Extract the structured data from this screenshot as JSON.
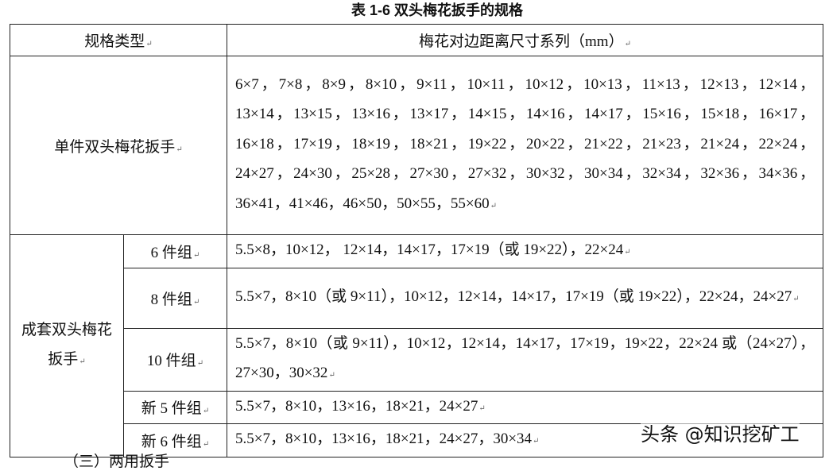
{
  "title": "表 1-6  双头梅花扳手的规格",
  "table": {
    "headers": [
      "规格类型",
      "梅花对边距离尺寸系列（mm）"
    ],
    "single": {
      "type": "单件双头梅花扳手",
      "sizes": "6×7，7×8，8×9，8×10，9×11，10×11，10×12，10×13，11×13，12×13，12×14，13×14，13×15，13×16，13×17，14×15，14×16，14×17，15×16，15×18，16×17，16×18，17×19，18×19，18×21，19×22，20×22，21×22，21×23，21×24，22×24，24×27，24×30，25×28，27×30，27×32，30×32，30×34，32×34，32×36，34×36，36×41，41×46，46×50，50×55，55×60"
    },
    "set_type": "成套双头梅花扳手",
    "sets": [
      {
        "group": "6 件组",
        "sizes": "5.5×8，10×12， 12×14，14×17，17×19（或 19×22），22×24"
      },
      {
        "group": "8 件组",
        "sizes": "5.5×7，8×10（或 9×11），10×12，12×14，14×17，17×19（或 19×22），22×24，24×27"
      },
      {
        "group": "10 件组",
        "sizes": "5.5×7，8×10（或 9×11），10×12，12×14，14×17，17×19，19×22，22×24 或（24×27），27×30，30×32"
      },
      {
        "group": "新 5 件组",
        "sizes": "5.5×7，8×10，13×16，18×21，24×27"
      },
      {
        "group": "新 6 件组",
        "sizes": "5.5×7，8×10，13×16，18×21，24×27，30×34"
      }
    ]
  },
  "watermark": "头条 @知识挖矿工",
  "footer_partial": "（三）两用扳手"
}
